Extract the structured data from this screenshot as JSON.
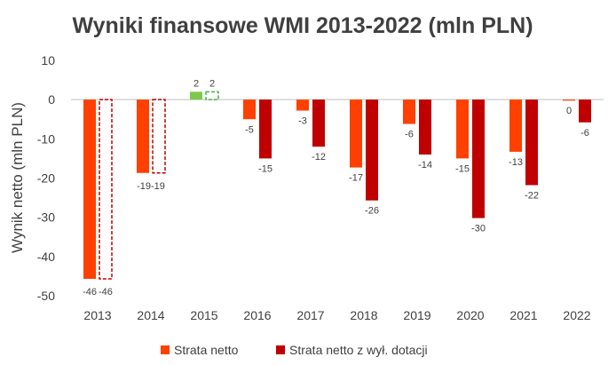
{
  "chart_data": {
    "type": "bar",
    "title": "Wyniki finansowe WMI 2013-2022 (mln PLN)",
    "ylabel": "Wynik netto (mln PLN)",
    "xlabel": "",
    "ylim": [
      -50,
      10
    ],
    "yticks": [
      10,
      0,
      -10,
      -20,
      -30,
      -40,
      -50
    ],
    "grid": false,
    "legend_position": "bottom",
    "categories": [
      "2013",
      "2014",
      "2015",
      "2016",
      "2017",
      "2018",
      "2019",
      "2020",
      "2021",
      "2022"
    ],
    "series": [
      {
        "name": "Strata netto",
        "color": "#ff4000",
        "positive_color": "#7ec94a",
        "values": [
          -46,
          -19,
          2,
          -5,
          -3,
          -17,
          -6,
          -15,
          -13,
          0
        ],
        "exact_values": [
          -45.7,
          -18.7,
          2.0,
          -5.0,
          -2.8,
          -17.3,
          -6.2,
          -15.0,
          -13.3,
          -0.2
        ],
        "labels": [
          "-46",
          "-19",
          "2",
          "-5",
          "-3",
          "-17",
          "-6",
          "-15",
          "-13",
          "0"
        ]
      },
      {
        "name": "Strata netto z wył. dotacji",
        "color": "#c00000",
        "positive_color": "#7ec94a",
        "values": [
          -46,
          -19,
          2,
          -15,
          -12,
          -26,
          -14,
          -30,
          -22,
          -6
        ],
        "exact_values": [
          -45.7,
          -18.7,
          2.0,
          -15.0,
          -12.0,
          -25.7,
          -14.0,
          -30.2,
          -21.8,
          -5.8
        ],
        "labels": [
          "-46",
          "-19",
          "2",
          "-15",
          "-12",
          "-26",
          "-14",
          "-30",
          "-22",
          "-6"
        ],
        "dashed_outline": [
          true,
          true,
          true,
          false,
          false,
          false,
          false,
          false,
          false,
          false
        ]
      }
    ]
  }
}
